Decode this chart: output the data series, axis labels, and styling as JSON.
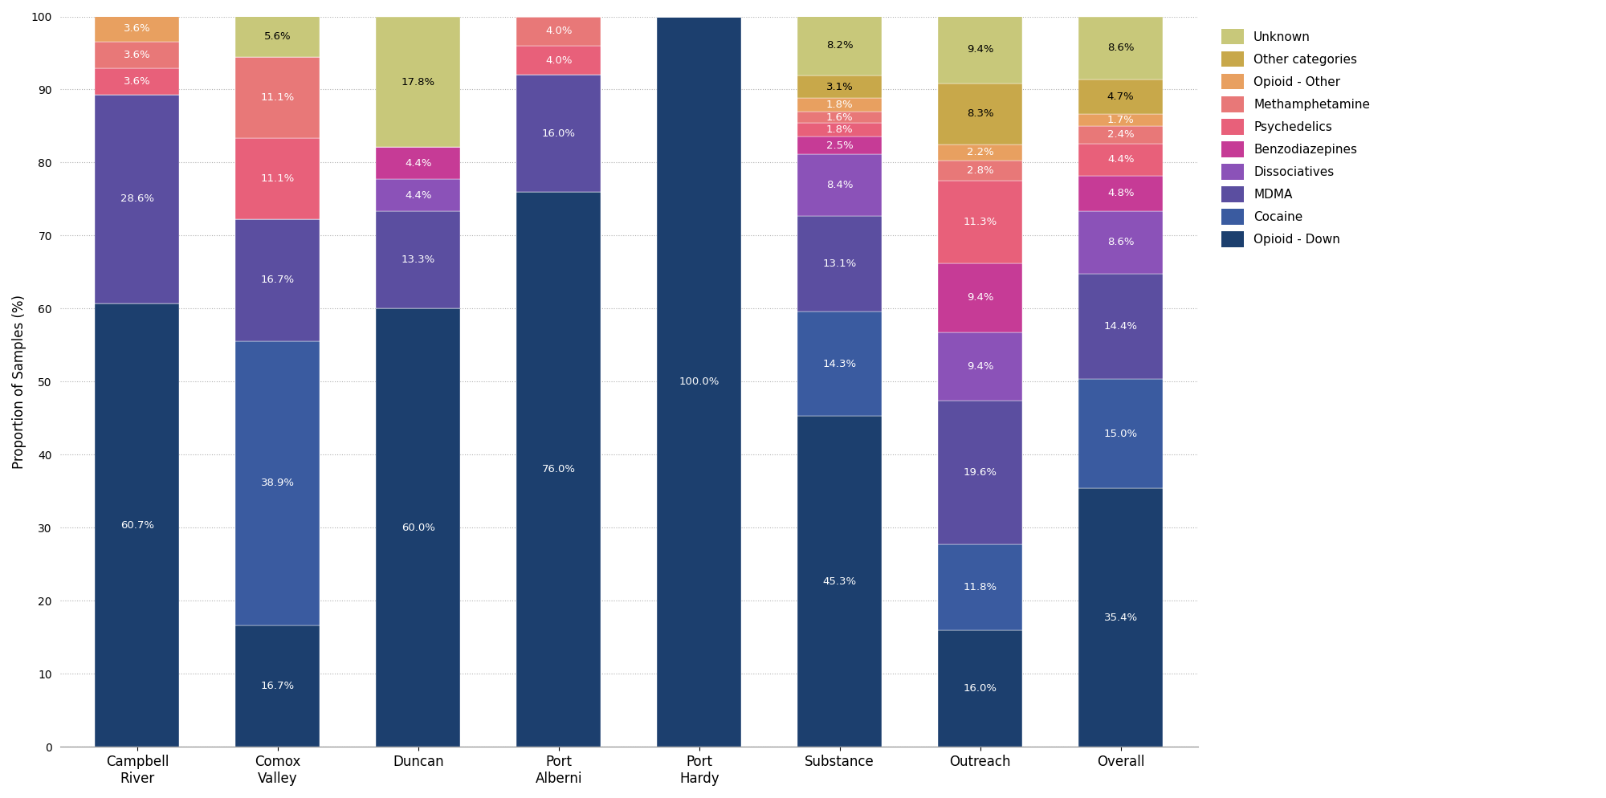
{
  "categories": [
    "Campbell\nRiver",
    "Comox\nValley",
    "Duncan",
    "Port\nAlberni",
    "Port\nHardy",
    "Substance",
    "Outreach",
    "Overall"
  ],
  "drug_classes": [
    "Opioid - Down",
    "Cocaine",
    "MDMA",
    "Dissociatives",
    "Benzodiazepines",
    "Psychedelics",
    "Methamphetamine",
    "Opioid - Other",
    "Other categories",
    "Unknown"
  ],
  "colors": [
    "#1c3f6e",
    "#3a5ba0",
    "#5b4ea0",
    "#8b52b8",
    "#c63b96",
    "#e8607a",
    "#e87878",
    "#e8a060",
    "#c8a84a",
    "#c8c87a"
  ],
  "data": {
    "Campbell\nRiver": [
      60.7,
      0.0,
      28.6,
      0.0,
      0.0,
      3.6,
      3.6,
      3.6,
      0.0,
      0.0
    ],
    "Comox\nValley": [
      16.7,
      38.9,
      16.7,
      0.0,
      0.0,
      11.1,
      11.1,
      0.0,
      0.0,
      5.6
    ],
    "Duncan": [
      60.0,
      0.0,
      13.3,
      4.4,
      4.4,
      0.0,
      0.0,
      0.0,
      0.0,
      17.8
    ],
    "Port\nAlberni": [
      76.0,
      0.0,
      16.0,
      0.0,
      0.0,
      4.0,
      4.0,
      0.0,
      0.0,
      0.0
    ],
    "Port\nHardy": [
      100.0,
      0.0,
      0.0,
      0.0,
      0.0,
      0.0,
      0.0,
      0.0,
      0.0,
      0.0
    ],
    "Substance": [
      45.3,
      14.3,
      13.1,
      8.4,
      2.5,
      1.8,
      1.6,
      1.8,
      3.1,
      8.2
    ],
    "Outreach": [
      16.0,
      11.8,
      19.6,
      9.4,
      9.4,
      11.3,
      2.8,
      2.2,
      8.3,
      9.4
    ],
    "Overall": [
      35.4,
      15.0,
      14.4,
      8.6,
      4.8,
      4.4,
      2.4,
      1.7,
      4.7,
      8.6
    ]
  },
  "ylabel": "Proportion of Samples (%)",
  "ylim": [
    0,
    100
  ],
  "legend_labels": [
    "Unknown",
    "Other categories",
    "Opioid - Other",
    "Methamphetamine",
    "Psychedelics",
    "Benzodiazepines",
    "Dissociatives",
    "MDMA",
    "Cocaine",
    "Opioid - Down"
  ],
  "legend_colors": [
    "#c8c87a",
    "#c8a84a",
    "#e8a060",
    "#e87878",
    "#e8607a",
    "#c63b96",
    "#8b52b8",
    "#5b4ea0",
    "#3a5ba0",
    "#1c3f6e"
  ],
  "background_color": "#ffffff",
  "grid_color": "#b0b0b0",
  "min_label_pct": 1.0,
  "bar_width": 0.6,
  "label_fontsize": 9.5
}
